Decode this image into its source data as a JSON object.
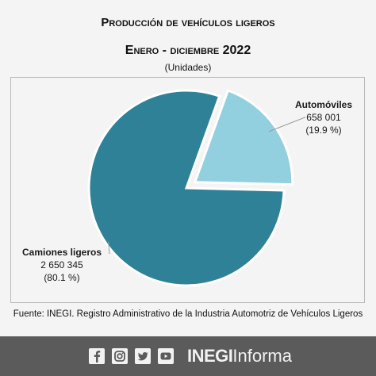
{
  "chart_data": {
    "type": "pie",
    "title": "Producción de vehículos ligeros",
    "subtitle": "Enero - diciembre 2022",
    "units_note": "(Unidades)",
    "slices": [
      {
        "label": "Automóviles",
        "value": 658001,
        "value_text": "658 001",
        "percent": 19.9,
        "percent_text": "(19.9 %)",
        "color": "#92cfdf",
        "exploded": true
      },
      {
        "label": "Camiones ligeros",
        "value": 2650345,
        "value_text": "2 650 345",
        "percent": 80.1,
        "percent_text": "(80.1 %)",
        "color": "#2f8198",
        "exploded": false
      }
    ],
    "source": "Fuente: INEGI. Registro Administrativo de la Industria Automotriz de Vehículos Ligeros"
  },
  "footer": {
    "icons": [
      "facebook-icon",
      "instagram-icon",
      "twitter-icon",
      "youtube-icon"
    ],
    "brand_bold": "INEGI",
    "brand_regular": "Informa",
    "background": "#5b5b5b"
  }
}
